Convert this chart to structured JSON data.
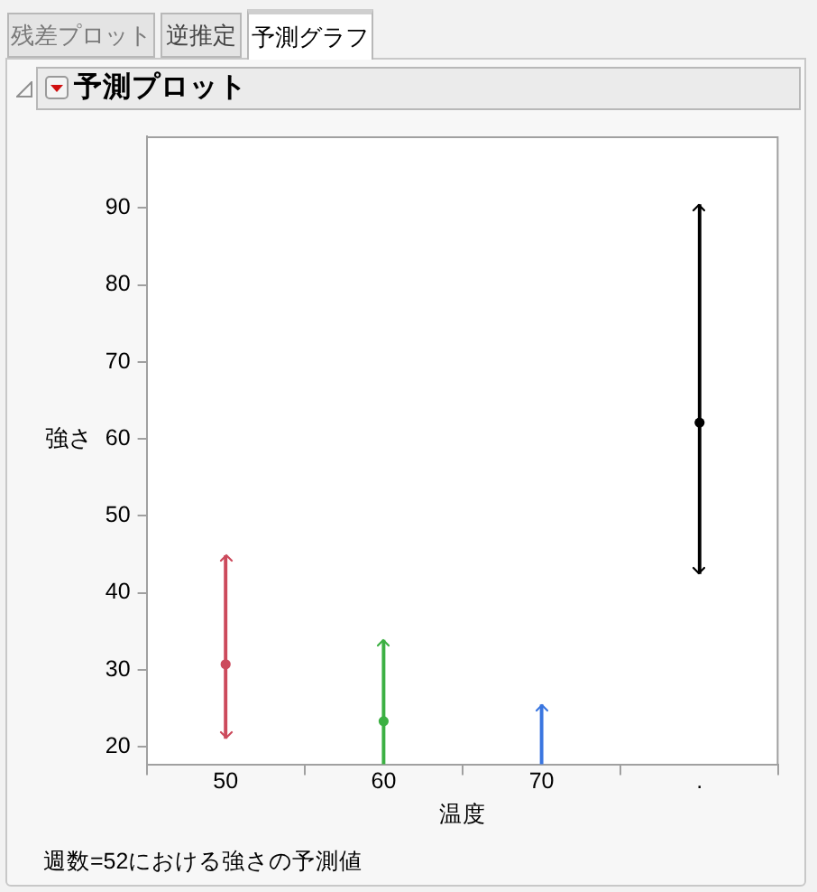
{
  "chart_data": {
    "type": "bar",
    "title": "予測プロット",
    "xlabel": "温度",
    "ylabel": "強さ",
    "categories": [
      "50",
      "60",
      "70",
      "."
    ],
    "series": [
      {
        "base": [
          21.1,
          17.7,
          17.7,
          42.5
        ],
        "values": [
          23.7,
          16.1,
          7.7,
          47.9
        ],
        "colors": [
          "#cc4a5c",
          "#3cb043",
          "#3a76e0",
          "#000000"
        ]
      },
      {
        "type": "scatter",
        "x": [
          "50",
          "60",
          "."
        ],
        "values": [
          30.7,
          23.3,
          62.1
        ],
        "colors": [
          "#cc4a5c",
          "#3cb043",
          "#000000"
        ]
      }
    ],
    "ylim": [
      17.7,
      99.3
    ],
    "yticks": [
      20,
      30,
      40,
      50,
      60,
      70,
      80,
      90
    ],
    "marker": "circle",
    "annotations": [
      "残差プロット",
      "逆推定",
      "予測グラフ",
      "週数=52における強さの予測値"
    ]
  }
}
